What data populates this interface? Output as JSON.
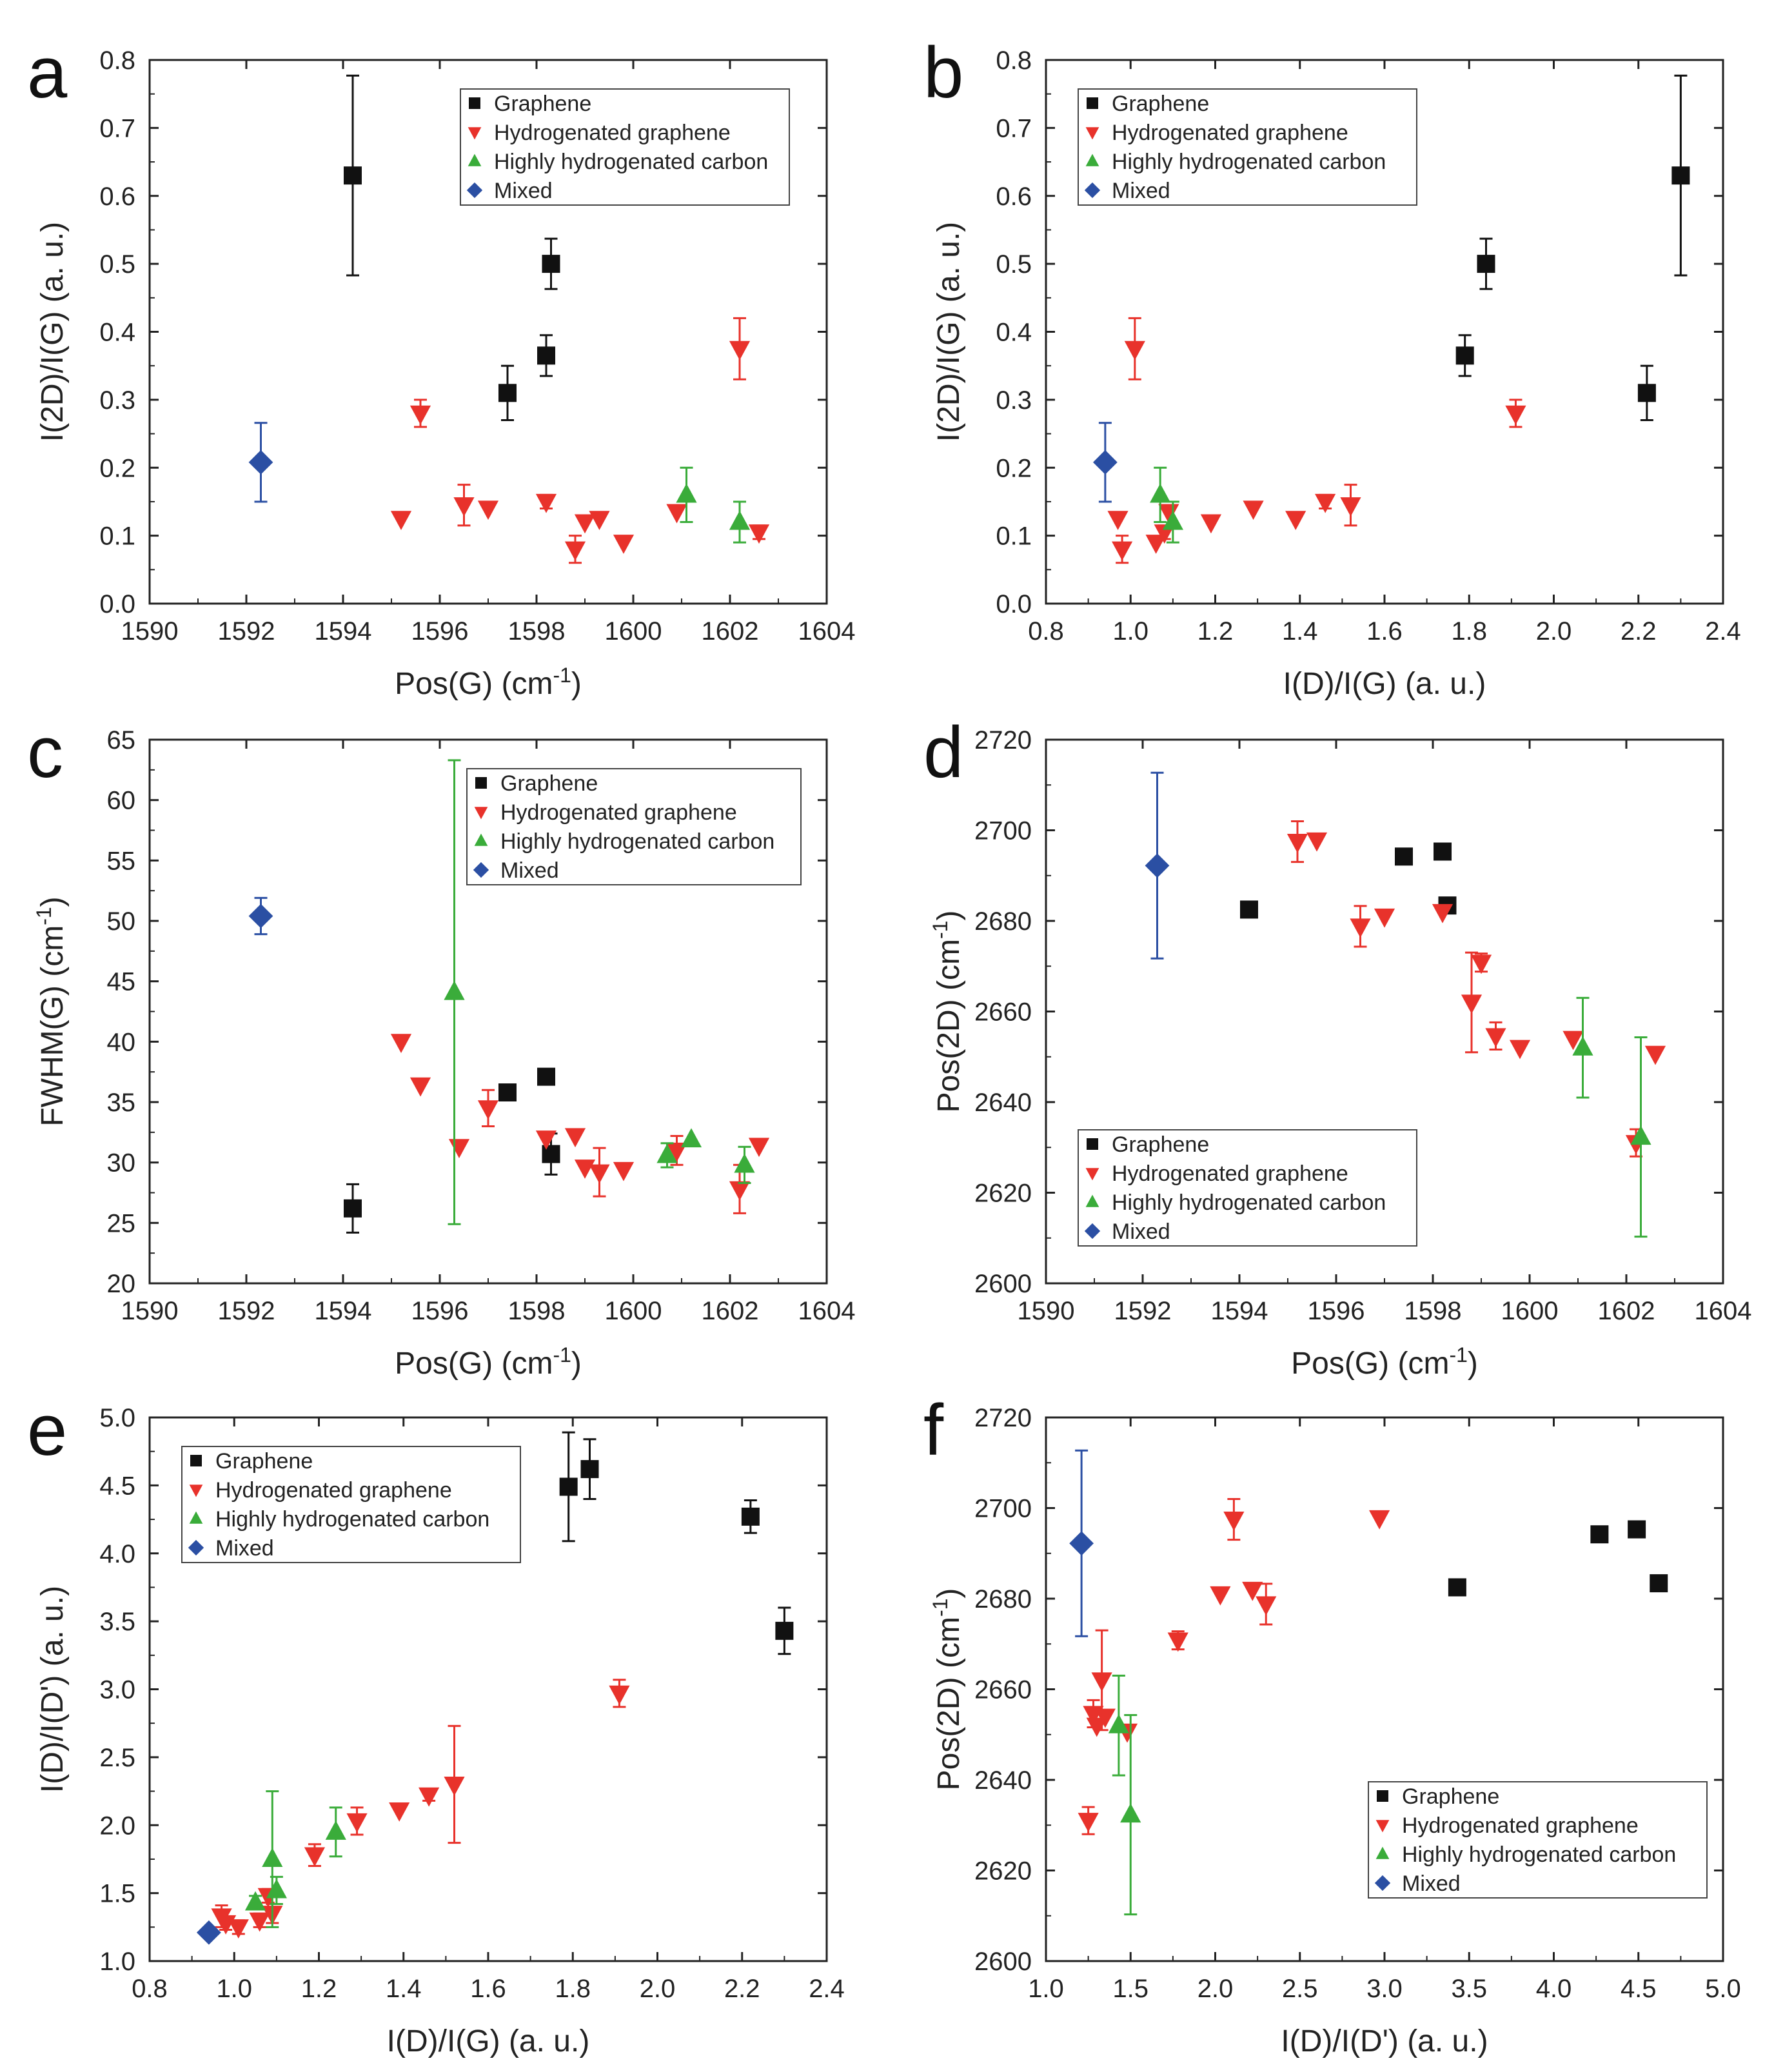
{
  "colors": {
    "graphene": "#111111",
    "hydrogenated": "#e8322b",
    "highly": "#3aac3a",
    "mixed": "#2b4fa3"
  },
  "chart_data": [
    {
      "type": "scatter",
      "panel": "a",
      "xlabel": "Pos(G) (cm",
      "xlabel_sup": "-1",
      "xlabel_end": ")",
      "ylabel": "I(2D)/I(G) (a. u.)",
      "xlim": [
        1590,
        1604
      ],
      "ylim": [
        0.0,
        0.8
      ],
      "xticks": [
        "1590",
        "1592",
        "1594",
        "1596",
        "1598",
        "1600",
        "1602",
        "1604"
      ],
      "yticks": [
        "0.0",
        "0.1",
        "0.2",
        "0.3",
        "0.4",
        "0.5",
        "0.6",
        "0.7",
        "0.8"
      ],
      "legend": {
        "position": "top-right",
        "entries": [
          "Graphene",
          "Hydrogenated graphene",
          "Highly hydrogenated carbon",
          "Mixed"
        ]
      },
      "series": [
        {
          "name": "Graphene",
          "marker": "square",
          "points": [
            [
              1594.2,
              0.63,
              0.147
            ],
            [
              1597.4,
              0.31,
              0.04
            ],
            [
              1598.2,
              0.365,
              0.03
            ],
            [
              1598.3,
              0.5,
              0.037
            ]
          ]
        },
        {
          "name": "Hydrogenated graphene",
          "marker": "tri-down",
          "points": [
            [
              1595.2,
              0.125,
              0
            ],
            [
              1595.6,
              0.28,
              0.02
            ],
            [
              1596.5,
              0.145,
              0.03
            ],
            [
              1597.0,
              0.14,
              0
            ],
            [
              1598.2,
              0.15,
              0.01
            ],
            [
              1598.8,
              0.08,
              0.02
            ],
            [
              1599.0,
              0.12,
              0
            ],
            [
              1599.3,
              0.125,
              0
            ],
            [
              1599.8,
              0.09,
              0
            ],
            [
              1600.9,
              0.135,
              0
            ],
            [
              1602.2,
              0.375,
              0.045
            ],
            [
              1602.6,
              0.105,
              0.01
            ]
          ]
        },
        {
          "name": "Highly hydrogenated carbon",
          "marker": "tri-up",
          "points": [
            [
              1601.1,
              0.16,
              0.04
            ],
            [
              1602.2,
              0.12,
              0.03
            ]
          ]
        },
        {
          "name": "Mixed",
          "marker": "diamond",
          "points": [
            [
              1592.3,
              0.208,
              0.058
            ]
          ]
        }
      ]
    },
    {
      "type": "scatter",
      "panel": "b",
      "xlabel": "I(D)/I(G) (a. u.)",
      "ylabel": "I(2D)/I(G) (a. u.)",
      "xlim": [
        0.8,
        2.4
      ],
      "ylim": [
        0.0,
        0.8
      ],
      "xticks": [
        "0.8",
        "1.0",
        "1.2",
        "1.4",
        "1.6",
        "1.8",
        "2.0",
        "2.2",
        "2.4"
      ],
      "yticks": [
        "0.0",
        "0.1",
        "0.2",
        "0.3",
        "0.4",
        "0.5",
        "0.6",
        "0.7",
        "0.8"
      ],
      "legend": {
        "position": "top-left",
        "entries": [
          "Graphene",
          "Hydrogenated graphene",
          "Highly hydrogenated carbon",
          "Mixed"
        ]
      },
      "series": [
        {
          "name": "Graphene",
          "marker": "square",
          "points": [
            [
              1.79,
              0.365,
              0.03
            ],
            [
              1.84,
              0.5,
              0.037
            ],
            [
              2.22,
              0.31,
              0.04
            ],
            [
              2.3,
              0.63,
              0.147
            ]
          ]
        },
        {
          "name": "Hydrogenated graphene",
          "marker": "tri-down",
          "points": [
            [
              0.97,
              0.125,
              0
            ],
            [
              0.98,
              0.08,
              0.02
            ],
            [
              1.01,
              0.375,
              0.045
            ],
            [
              1.06,
              0.09,
              0
            ],
            [
              1.08,
              0.105,
              0.01
            ],
            [
              1.09,
              0.135,
              0
            ],
            [
              1.19,
              0.12,
              0
            ],
            [
              1.29,
              0.14,
              0
            ],
            [
              1.39,
              0.125,
              0
            ],
            [
              1.46,
              0.15,
              0.01
            ],
            [
              1.52,
              0.145,
              0.03
            ],
            [
              1.91,
              0.28,
              0.02
            ]
          ]
        },
        {
          "name": "Highly hydrogenated carbon",
          "marker": "tri-up",
          "points": [
            [
              1.07,
              0.16,
              0.04
            ],
            [
              1.1,
              0.12,
              0.03
            ]
          ]
        },
        {
          "name": "Mixed",
          "marker": "diamond",
          "points": [
            [
              0.94,
              0.208,
              0.058
            ]
          ]
        }
      ]
    },
    {
      "type": "scatter",
      "panel": "c",
      "xlabel": "Pos(G) (cm",
      "xlabel_sup": "-1",
      "xlabel_end": ")",
      "ylabel": "FWHM(G) (cm",
      "ylabel_sup": "-1",
      "ylabel_end": ")",
      "xlim": [
        1590,
        1604
      ],
      "ylim": [
        20,
        65
      ],
      "xticks": [
        "1590",
        "1592",
        "1594",
        "1596",
        "1598",
        "1600",
        "1602",
        "1604"
      ],
      "yticks": [
        "20",
        "25",
        "30",
        "35",
        "40",
        "45",
        "50",
        "55",
        "60",
        "65"
      ],
      "legend": {
        "position": "top-right",
        "entries": [
          "Graphene",
          "Hydrogenated graphene",
          "Highly hydrogenated carbon",
          "Mixed"
        ]
      },
      "series": [
        {
          "name": "Graphene",
          "marker": "square",
          "points": [
            [
              1594.2,
              26.2,
              2
            ],
            [
              1597.4,
              35.8,
              0
            ],
            [
              1598.2,
              37.1,
              0
            ],
            [
              1598.3,
              30.7,
              1.7
            ]
          ]
        },
        {
          "name": "Hydrogenated graphene",
          "marker": "tri-down",
          "points": [
            [
              1595.2,
              40.0,
              0
            ],
            [
              1595.6,
              36.4,
              0
            ],
            [
              1596.4,
              31.3,
              0
            ],
            [
              1597.0,
              34.5,
              1.5
            ],
            [
              1598.2,
              32.0,
              0
            ],
            [
              1598.8,
              32.2,
              0
            ],
            [
              1599.0,
              29.6,
              0
            ],
            [
              1599.3,
              29.2,
              2
            ],
            [
              1599.8,
              29.4,
              0
            ],
            [
              1600.9,
              31.0,
              1.2
            ],
            [
              1602.2,
              27.8,
              2
            ],
            [
              1602.6,
              31.4,
              0
            ]
          ]
        },
        {
          "name": "Highly hydrogenated carbon",
          "marker": "tri-up",
          "points": [
            [
              1596.3,
              44.1,
              19.2
            ],
            [
              1600.7,
              30.6,
              1
            ],
            [
              1601.2,
              31.9,
              0
            ],
            [
              1602.3,
              29.8,
              1.5
            ]
          ]
        },
        {
          "name": "Mixed",
          "marker": "diamond",
          "points": [
            [
              1592.3,
              50.4,
              1.5
            ]
          ]
        }
      ]
    },
    {
      "type": "scatter",
      "panel": "d",
      "xlabel": "Pos(G) (cm",
      "xlabel_sup": "-1",
      "xlabel_end": ")",
      "ylabel": "Pos(2D) (cm",
      "ylabel_sup": "-1",
      "ylabel_end": ")",
      "xlim": [
        1590,
        1604
      ],
      "ylim": [
        2600,
        2720
      ],
      "xticks": [
        "1590",
        "1592",
        "1594",
        "1596",
        "1598",
        "1600",
        "1602",
        "1604"
      ],
      "yticks": [
        "2600",
        "2620",
        "2640",
        "2660",
        "2680",
        "2700",
        "2720"
      ],
      "legend": {
        "position": "bottom-left",
        "entries": [
          "Graphene",
          "Hydrogenated graphene",
          "Highly hydrogenated carbon",
          "Mixed"
        ]
      },
      "series": [
        {
          "name": "Graphene",
          "marker": "square",
          "points": [
            [
              1594.2,
              2682.5,
              0
            ],
            [
              1597.4,
              2694.2,
              0
            ],
            [
              1598.2,
              2695.3,
              0
            ],
            [
              1598.3,
              2683.4,
              0
            ]
          ]
        },
        {
          "name": "Hydrogenated graphene",
          "marker": "tri-down",
          "points": [
            [
              1595.2,
              2697.5,
              4.5
            ],
            [
              1595.6,
              2697.8,
              0
            ],
            [
              1596.5,
              2678.8,
              4.5
            ],
            [
              1597.0,
              2681.0,
              0
            ],
            [
              1598.2,
              2682.0,
              0
            ],
            [
              1598.8,
              2662.0,
              11
            ],
            [
              1599.0,
              2670.8,
              2
            ],
            [
              1599.3,
              2654.6,
              3
            ],
            [
              1599.8,
              2652.0,
              0
            ],
            [
              1600.9,
              2654.0,
              0
            ],
            [
              1602.2,
              2631.0,
              3
            ],
            [
              1602.6,
              2650.7,
              0
            ]
          ]
        },
        {
          "name": "Highly hydrogenated carbon",
          "marker": "tri-up",
          "points": [
            [
              1601.1,
              2652.0,
              11
            ],
            [
              1602.3,
              2632.3,
              22
            ]
          ]
        },
        {
          "name": "Mixed",
          "marker": "diamond",
          "points": [
            [
              1592.3,
              2692.2,
              20.5
            ]
          ]
        }
      ]
    },
    {
      "type": "scatter",
      "panel": "e",
      "xlabel": "I(D)/I(G) (a. u.)",
      "ylabel": "I(D)/I(D') (a. u.)",
      "xlim": [
        0.8,
        2.4
      ],
      "ylim": [
        1.0,
        5.0
      ],
      "xticks": [
        "0.8",
        "1.0",
        "1.2",
        "1.4",
        "1.6",
        "1.8",
        "2.0",
        "2.2",
        "2.4"
      ],
      "yticks": [
        "1.0",
        "1.5",
        "2.0",
        "2.5",
        "3.0",
        "3.5",
        "4.0",
        "4.5",
        "5.0"
      ],
      "legend": {
        "position": "top-left",
        "entries": [
          "Graphene",
          "Hydrogenated graphene",
          "Highly hydrogenated carbon",
          "Mixed"
        ]
      },
      "series": [
        {
          "name": "Graphene",
          "marker": "square",
          "points": [
            [
              1.79,
              4.49,
              0.4
            ],
            [
              1.84,
              4.62,
              0.22
            ],
            [
              2.22,
              4.27,
              0.12
            ],
            [
              2.3,
              3.43,
              0.17
            ]
          ]
        },
        {
          "name": "Hydrogenated graphene",
          "marker": "tri-down",
          "points": [
            [
              0.97,
              1.33,
              0.08
            ],
            [
              0.98,
              1.28,
              0.05
            ],
            [
              1.01,
              1.25,
              0.05
            ],
            [
              1.06,
              1.3,
              0.05
            ],
            [
              1.08,
              1.48,
              0.05
            ],
            [
              1.09,
              1.35,
              0.07
            ],
            [
              1.19,
              1.78,
              0.08
            ],
            [
              1.29,
              2.03,
              0.1
            ],
            [
              1.39,
              2.11,
              0
            ],
            [
              1.46,
              2.22,
              0.04
            ],
            [
              1.52,
              2.3,
              0.43
            ],
            [
              1.91,
              2.97,
              0.1
            ]
          ]
        },
        {
          "name": "Highly hydrogenated carbon",
          "marker": "tri-up",
          "points": [
            [
              1.05,
              1.43,
              0.05
            ],
            [
              1.09,
              1.75,
              0.5
            ],
            [
              1.1,
              1.52,
              0.1
            ],
            [
              1.24,
              1.95,
              0.18
            ]
          ]
        },
        {
          "name": "Mixed",
          "marker": "diamond",
          "points": [
            [
              0.94,
              1.21,
              0
            ]
          ]
        }
      ]
    },
    {
      "type": "scatter",
      "panel": "f",
      "xlabel": "I(D)/I(D') (a. u.)",
      "ylabel": "Pos(2D) (cm",
      "ylabel_sup": "-1",
      "ylabel_end": ")",
      "xlim": [
        1.0,
        5.0
      ],
      "ylim": [
        2600,
        2720
      ],
      "xticks": [
        "1.0",
        "1.5",
        "2.0",
        "2.5",
        "3.0",
        "3.5",
        "4.0",
        "4.5",
        "5.0"
      ],
      "yticks": [
        "2600",
        "2620",
        "2640",
        "2660",
        "2680",
        "2700",
        "2720"
      ],
      "legend": {
        "position": "bottom-right",
        "entries": [
          "Graphene",
          "Hydrogenated graphene",
          "Highly hydrogenated carbon",
          "Mixed"
        ]
      },
      "series": [
        {
          "name": "Graphene",
          "marker": "square",
          "points": [
            [
              3.43,
              2682.5,
              0
            ],
            [
              4.27,
              2694.2,
              0
            ],
            [
              4.49,
              2695.3,
              0
            ],
            [
              4.62,
              2683.4,
              0
            ]
          ]
        },
        {
          "name": "Hydrogenated graphene",
          "marker": "tri-down",
          "points": [
            [
              1.25,
              2631.0,
              3
            ],
            [
              1.28,
              2654.6,
              3
            ],
            [
              1.3,
              2652.0,
              0
            ],
            [
              1.33,
              2662.0,
              11
            ],
            [
              1.35,
              2654.0,
              0
            ],
            [
              1.48,
              2650.7,
              0
            ],
            [
              1.78,
              2670.8,
              2
            ],
            [
              2.03,
              2681.0,
              0
            ],
            [
              2.11,
              2697.5,
              4.5
            ],
            [
              2.22,
              2682.0,
              0
            ],
            [
              2.3,
              2678.8,
              4.5
            ],
            [
              2.97,
              2697.8,
              0
            ]
          ]
        },
        {
          "name": "Highly hydrogenated carbon",
          "marker": "tri-up",
          "points": [
            [
              1.43,
              2652.0,
              11
            ],
            [
              1.5,
              2632.3,
              22
            ]
          ]
        },
        {
          "name": "Mixed",
          "marker": "diamond",
          "points": [
            [
              1.21,
              2692.2,
              20.5
            ]
          ]
        }
      ]
    }
  ]
}
